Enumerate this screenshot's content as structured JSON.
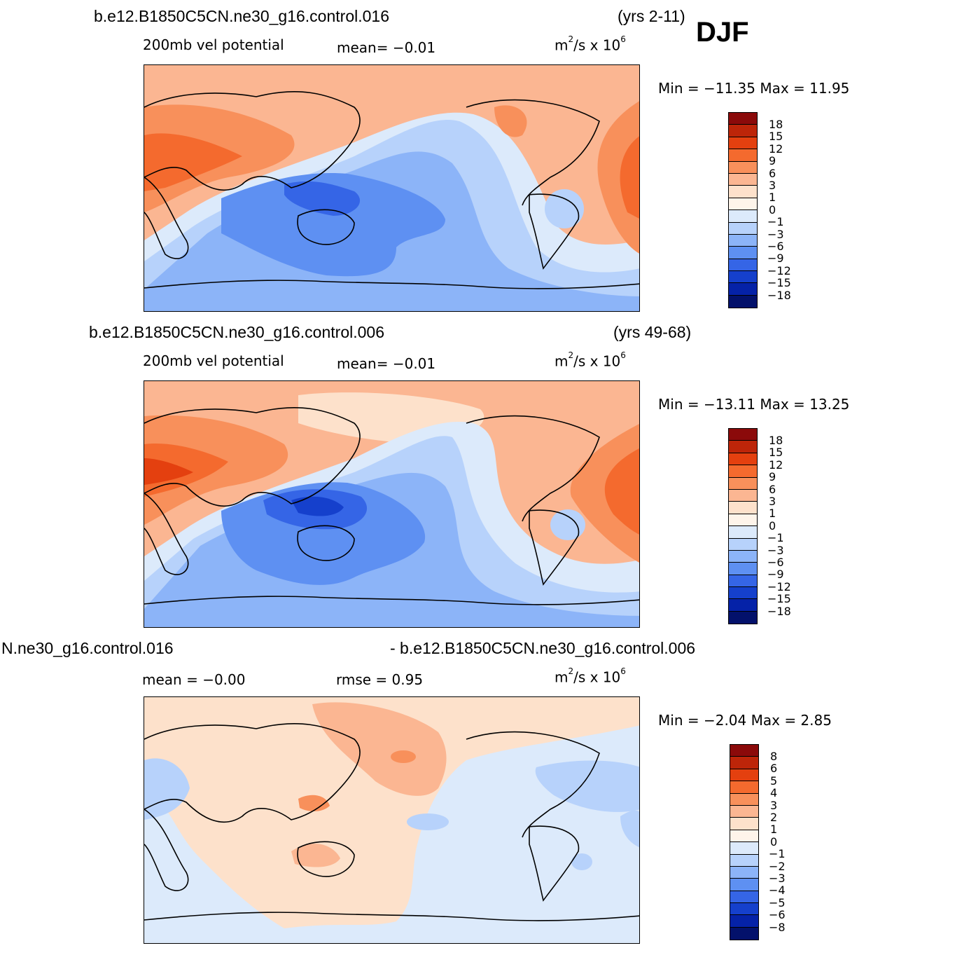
{
  "season": "DJF",
  "panels": [
    {
      "case": "b.e12.B1850C5CN.ne30_g16.control.016",
      "years": "(yrs 2-11)",
      "variable": "200mb vel potential",
      "stat1": "mean=   −0.01",
      "stat2": "",
      "units_base": "m",
      "units_exp": "2",
      "units_mid": "/s  x  10",
      "units_exp2": "6",
      "minmax": "Min  =  −11.35  Max  =    11.95",
      "colorbar": {
        "labels": [
          "18",
          "15",
          "12",
          "9",
          "6",
          "3",
          "1",
          "0",
          "−1",
          "−3",
          "−6",
          "−9",
          "−12",
          "−15",
          "−18"
        ],
        "colors": [
          "#8b0a0a",
          "#bd2509",
          "#e4400f",
          "#f46a2e",
          "#f8905b",
          "#fbb692",
          "#fde1cb",
          "#fef4ea",
          "#dceafb",
          "#b7d2fb",
          "#8cb4f8",
          "#5e90f2",
          "#3565e6",
          "#1540cc",
          "#0522a8",
          "#03116b"
        ]
      }
    },
    {
      "case": "b.e12.B1850C5CN.ne30_g16.control.006",
      "years": "(yrs 49-68)",
      "variable": "200mb vel potential",
      "stat1": "mean=   −0.01",
      "stat2": "",
      "units_base": "m",
      "units_exp": "2",
      "units_mid": "/s  x  10",
      "units_exp2": "6",
      "minmax": "Min  =  −13.11  Max  =    13.25",
      "colorbar": {
        "labels": [
          "18",
          "15",
          "12",
          "9",
          "6",
          "3",
          "1",
          "0",
          "−1",
          "−3",
          "−6",
          "−9",
          "−12",
          "−15",
          "−18"
        ],
        "colors": [
          "#8b0a0a",
          "#bd2509",
          "#e4400f",
          "#f46a2e",
          "#f8905b",
          "#fbb692",
          "#fde1cb",
          "#fef4ea",
          "#dceafb",
          "#b7d2fb",
          "#8cb4f8",
          "#5e90f2",
          "#3565e6",
          "#1540cc",
          "#0522a8",
          "#03116b"
        ]
      }
    },
    {
      "case_left": "N.ne30_g16.control.016",
      "case_right": "- b.e12.B1850C5CN.ne30_g16.control.006",
      "stat1": "mean  =    −0.00",
      "stat2": "rmse  =     0.95",
      "units_base": "m",
      "units_exp": "2",
      "units_mid": "/s  x  10",
      "units_exp2": "6",
      "minmax": "Min  =    −2.04  Max  =      2.85",
      "colorbar": {
        "labels": [
          "8",
          "6",
          "5",
          "4",
          "3",
          "2",
          "1",
          "0",
          "−1",
          "−2",
          "−3",
          "−4",
          "−5",
          "−6",
          "−8"
        ],
        "colors": [
          "#8b0a0a",
          "#bd2509",
          "#e4400f",
          "#f46a2e",
          "#f8905b",
          "#fbb692",
          "#fde1cb",
          "#fef4ea",
          "#dceafb",
          "#b7d2fb",
          "#8cb4f8",
          "#5e90f2",
          "#3565e6",
          "#1540cc",
          "#0522a8",
          "#03116b"
        ]
      }
    }
  ]
}
